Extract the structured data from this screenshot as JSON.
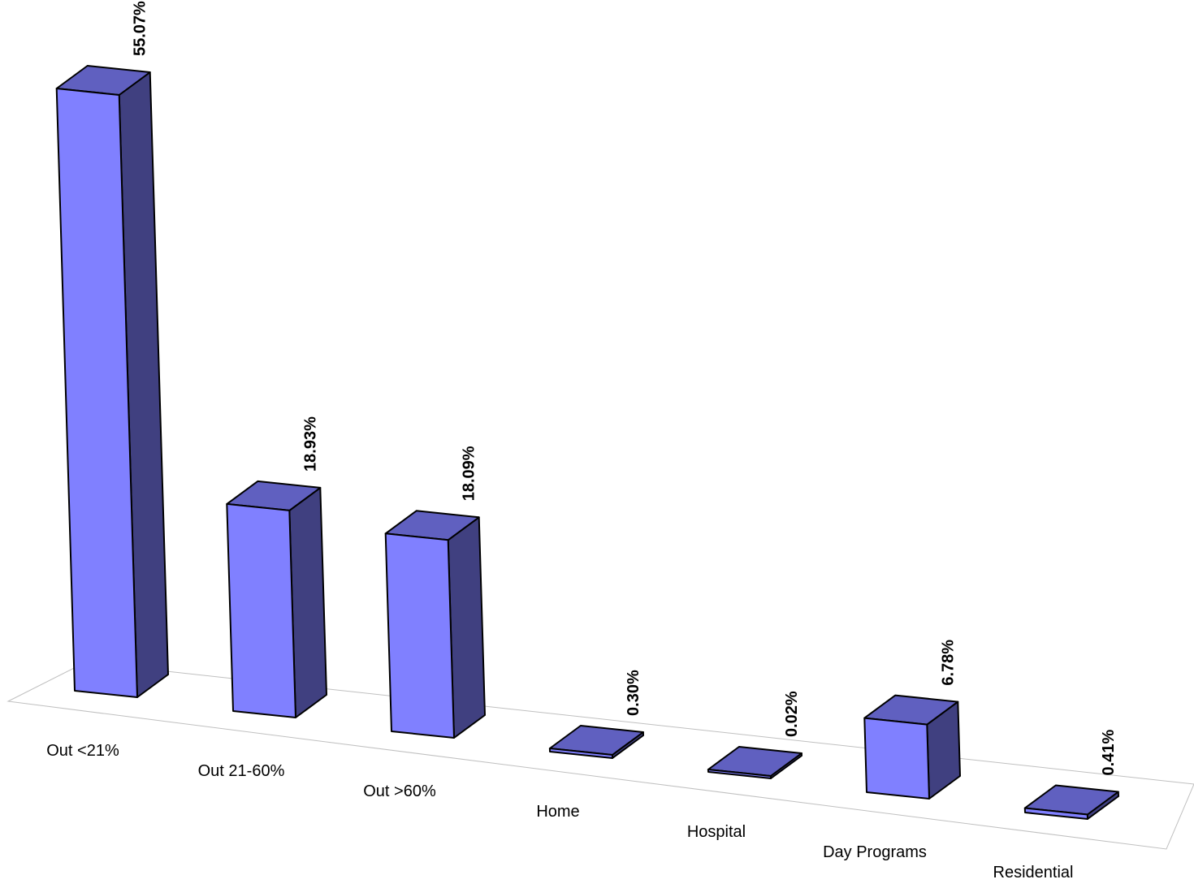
{
  "chart_data": {
    "type": "bar",
    "style": "3d",
    "categories": [
      "Out <21%",
      "Out 21-60%",
      "Out >60%",
      "Home",
      "Hospital",
      "Day Programs",
      "Residential"
    ],
    "values": [
      55.07,
      18.93,
      18.09,
      0.3,
      0.02,
      6.78,
      0.41
    ],
    "data_labels": [
      "55.07%",
      "18.93%",
      "18.09%",
      "0.30%",
      "0.02%",
      "6.78%",
      "0.41%"
    ],
    "title": "",
    "xlabel": "",
    "ylabel": "",
    "ylim": [
      0,
      55.07
    ],
    "grid": false,
    "legend": "none",
    "colors": {
      "front": "#8080ff",
      "top": "#6060c0",
      "side": "#404080",
      "outline": "#000000",
      "floor": "#c0c0c0"
    }
  }
}
